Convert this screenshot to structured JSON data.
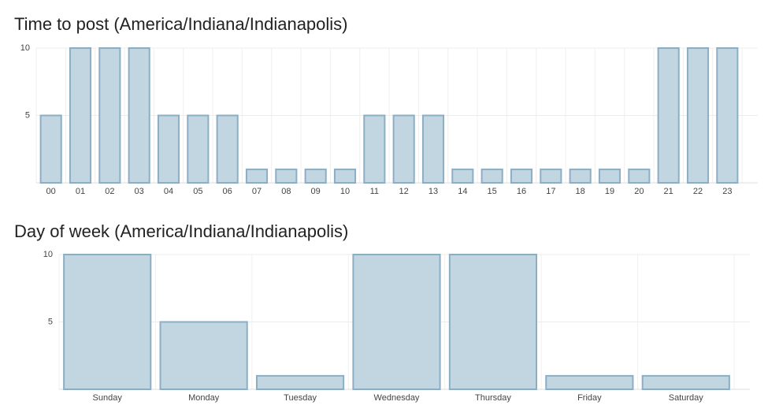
{
  "chart_data": [
    {
      "type": "bar",
      "title": "Time to post (America/Indiana/Indianapolis)",
      "categories": [
        "00",
        "01",
        "02",
        "03",
        "04",
        "05",
        "06",
        "07",
        "08",
        "09",
        "10",
        "11",
        "12",
        "13",
        "14",
        "15",
        "16",
        "17",
        "18",
        "19",
        "20",
        "21",
        "22",
        "23"
      ],
      "values": [
        5,
        10,
        10,
        10,
        5,
        5,
        5,
        1,
        1,
        1,
        1,
        5,
        5,
        5,
        1,
        1,
        1,
        1,
        1,
        1,
        1,
        10,
        10,
        10
      ],
      "color": "#c2d6e1",
      "ylim": [
        0,
        10
      ],
      "yticks": [
        5,
        10
      ],
      "grid": true
    },
    {
      "type": "bar",
      "title": "Day of week (America/Indiana/Indianapolis)",
      "categories": [
        "Sunday",
        "Monday",
        "Tuesday",
        "Wednesday",
        "Thursday",
        "Friday",
        "Saturday"
      ],
      "values": [
        10,
        5,
        1,
        10,
        10,
        1,
        1
      ],
      "color": "#c2d6e1",
      "ylim": [
        0,
        10
      ],
      "yticks": [
        5,
        10
      ],
      "grid": true
    }
  ]
}
